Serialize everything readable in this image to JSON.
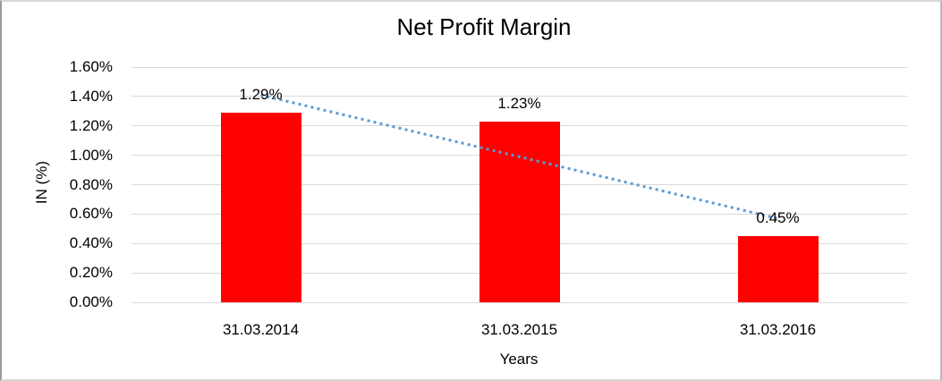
{
  "chart": {
    "title": "Net Profit Margin",
    "y_axis_title": "IN (%)",
    "x_axis_title": "Years"
  },
  "chart_data": {
    "type": "bar",
    "title": "Net Profit Margin",
    "xlabel": "Years",
    "ylabel": "IN (%)",
    "categories": [
      "31.03.2014",
      "31.03.2015",
      "31.03.2016"
    ],
    "values": [
      1.29,
      1.23,
      0.45
    ],
    "data_labels": [
      "1.29%",
      "1.23%",
      "0.45%"
    ],
    "ylim": [
      0,
      1.6
    ],
    "ytick_step": 0.2,
    "ytick_labels": [
      "0.00%",
      "0.20%",
      "0.40%",
      "0.60%",
      "0.80%",
      "1.00%",
      "1.20%",
      "1.40%",
      "1.60%"
    ],
    "grid": true,
    "legend": false,
    "colors": {
      "bar": "#ff0000",
      "gridline": "#d9d9d9",
      "trendline": "#5b9bd5",
      "text": "#000000",
      "background": "#ffffff"
    },
    "trendline": {
      "type": "linear",
      "style": "dotted",
      "color": "#5b9bd5",
      "start_value": 1.41,
      "end_value": 0.57
    }
  }
}
